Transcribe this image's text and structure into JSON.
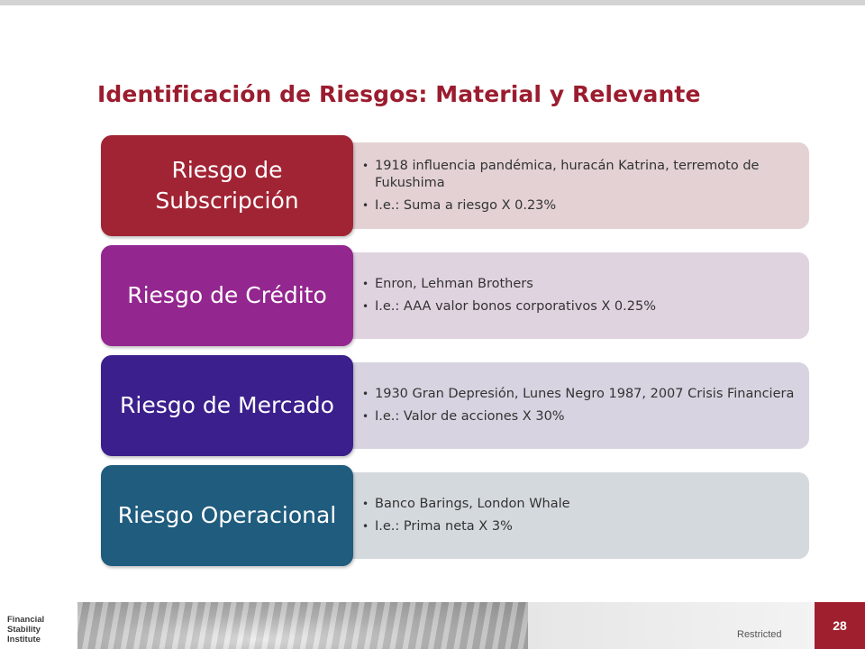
{
  "slide": {
    "title": "Identificación de Riesgos: Material y Relevante"
  },
  "rows": [
    {
      "label": "Riesgo de Subscripción",
      "box_color": "#a12434",
      "panel_color": "#e3d1d4",
      "bullets": [
        "1918 influencia pandémica, huracán Katrina, terremoto de Fukushima",
        "I.e.: Suma a riesgo X 0.23%"
      ]
    },
    {
      "label": "Riesgo de Crédito",
      "box_color": "#93268f",
      "panel_color": "#e0d3e0",
      "bullets": [
        "Enron, Lehman Brothers",
        "I.e.: AAA valor bonos corporativos X 0.25%"
      ]
    },
    {
      "label": "Riesgo de Mercado",
      "box_color": "#3b1f8c",
      "panel_color": "#d7d3e0",
      "bullets": [
        "1930  Gran Depresión, Lunes Negro 1987, 2007 Crisis Financiera",
        "I.e.: Valor de acciones X 30%"
      ]
    },
    {
      "label": "Riesgo Operacional",
      "box_color": "#1f5c7e",
      "panel_color": "#d4d9de",
      "bullets": [
        "Banco Barings, London Whale",
        "I.e.: Prima neta X 3%"
      ]
    }
  ],
  "footer": {
    "logo_text": "Financial Stability Institute",
    "classification": "Restricted",
    "page_number": "28"
  }
}
